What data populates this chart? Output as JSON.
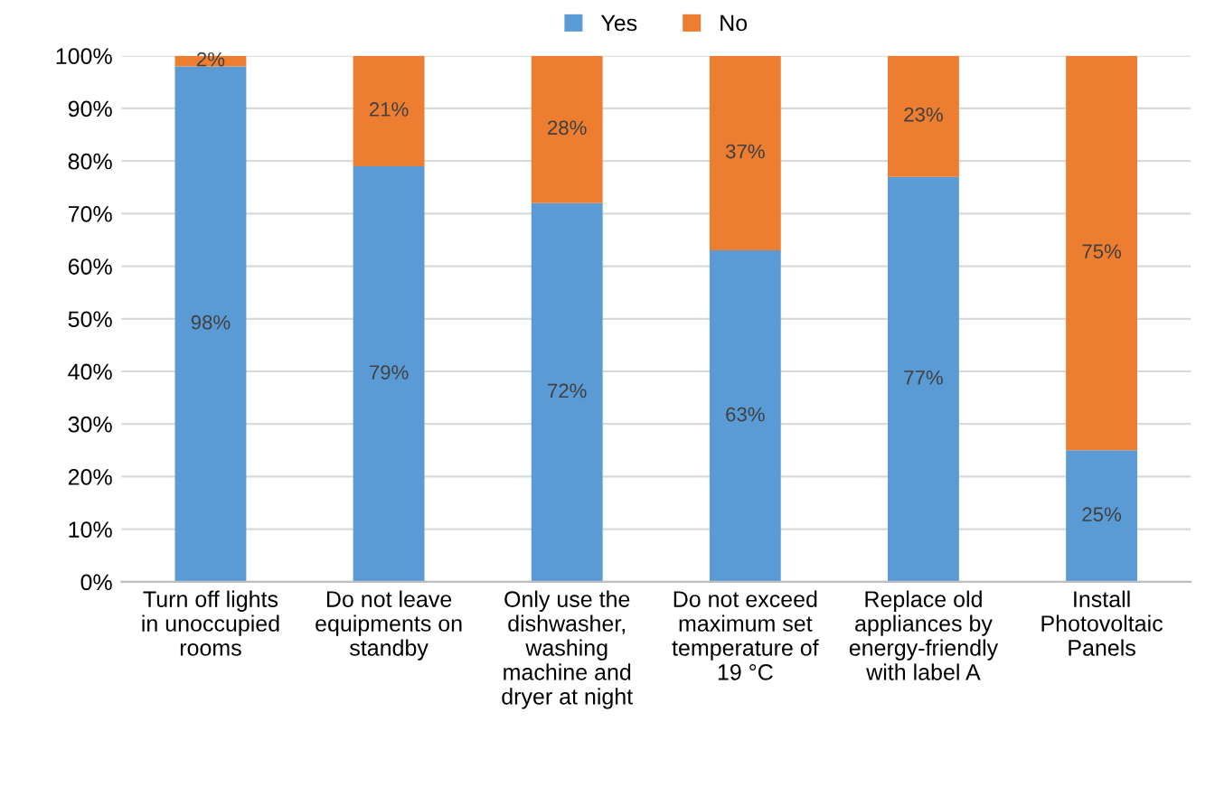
{
  "chart_data": {
    "type": "bar",
    "stacked": true,
    "categories": [
      "Turn off lights\nin unoccupied\nrooms",
      "Do not leave\nequipments on\nstandby",
      "Only use the\ndishwasher,\nwashing\nmachine and\ndryer at night",
      "Do not exceed\nmaximum set\ntemperature of\n19 °C",
      "Replace old\nappliances by\nenergy-friendly\nwith label A",
      "Install\nPhotovoltaic\nPanels"
    ],
    "series": [
      {
        "name": "Yes",
        "color": "#5b9bd5",
        "values": [
          98,
          79,
          72,
          63,
          77,
          25
        ],
        "value_labels": [
          "98%",
          "79%",
          "72%",
          "63%",
          "77%",
          "25%"
        ]
      },
      {
        "name": "No",
        "color": "#ed7d31",
        "values": [
          2,
          21,
          28,
          37,
          23,
          75
        ],
        "value_labels": [
          "2%",
          "21%",
          "28%",
          "37%",
          "23%",
          "75%"
        ]
      }
    ],
    "ylim": [
      0,
      100
    ],
    "yticks": [
      {
        "value": 0,
        "label": "0%"
      },
      {
        "value": 10,
        "label": "10%"
      },
      {
        "value": 20,
        "label": "20%"
      },
      {
        "value": 30,
        "label": "30%"
      },
      {
        "value": 40,
        "label": "40%"
      },
      {
        "value": 50,
        "label": "50%"
      },
      {
        "value": 60,
        "label": "60%"
      },
      {
        "value": 70,
        "label": "70%"
      },
      {
        "value": 80,
        "label": "80%"
      },
      {
        "value": 90,
        "label": "90%"
      },
      {
        "value": 100,
        "label": "100%"
      }
    ],
    "grid": "y",
    "legend": "top"
  }
}
